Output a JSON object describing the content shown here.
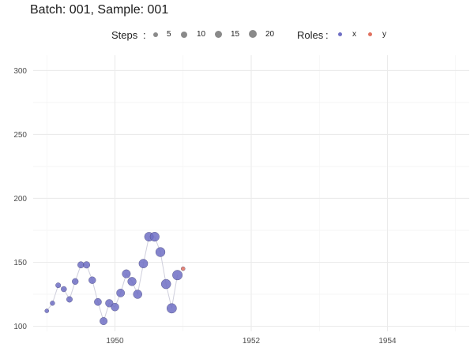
{
  "chart_data": {
    "type": "scatter",
    "title": "Batch: 001, Sample: 001",
    "xlabel": "",
    "ylabel": "",
    "xlim": [
      1948.8,
      1955.2
    ],
    "ylim": [
      96,
      312
    ],
    "x_ticks": [
      1950,
      1952,
      1954
    ],
    "y_ticks": [
      100,
      150,
      200,
      250,
      300
    ],
    "grid": true,
    "legend_position": "top",
    "legends": {
      "steps": {
        "title": "Steps",
        "values": [
          5,
          10,
          15,
          20
        ]
      },
      "roles": {
        "title": "Roles",
        "entries": [
          "x",
          "y"
        ]
      }
    },
    "colors": {
      "x": "#6f6fc4",
      "y": "#e0715f",
      "line": "#cfcfdc",
      "grid": "#ebebeb"
    },
    "series": [
      {
        "name": "x",
        "x": [
          1949.0,
          1949.083,
          1949.167,
          1949.25,
          1949.333,
          1949.417,
          1949.5,
          1949.583,
          1949.667,
          1949.75,
          1949.833,
          1949.917,
          1950.0,
          1950.083,
          1950.167,
          1950.25,
          1950.333,
          1950.417,
          1950.5,
          1950.583,
          1950.667,
          1950.75,
          1950.833,
          1950.917
        ],
        "y": [
          112,
          118,
          132,
          129,
          121,
          135,
          148,
          148,
          136,
          119,
          104,
          118,
          115,
          126,
          141,
          135,
          125,
          149,
          170,
          170,
          158,
          133,
          114,
          140
        ],
        "steps": [
          1,
          2,
          3,
          4,
          5,
          6,
          7,
          8,
          9,
          10,
          11,
          12,
          13,
          14,
          15,
          16,
          17,
          18,
          19,
          20,
          21,
          22,
          23,
          24
        ]
      },
      {
        "name": "y",
        "x": [
          1951.0
        ],
        "y": [
          145
        ],
        "steps": [
          1
        ]
      }
    ]
  }
}
